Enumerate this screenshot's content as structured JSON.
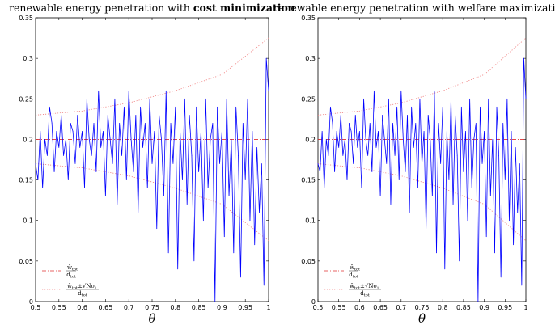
{
  "colors": {
    "signal": "#0000ff",
    "mean_line": "#e03030",
    "band_line": "#f08080",
    "axes": "#000000"
  },
  "chart_data": [
    {
      "type": "line",
      "title_main": "renewable energy penetration with ",
      "title_emph": "cost minimization",
      "xlabel": "θ",
      "ylabel": "",
      "xlim": [
        0.5,
        1.0
      ],
      "ylim": [
        0,
        0.35
      ],
      "xticks": [
        "0.5",
        "0.55",
        "0.6",
        "0.65",
        "0.7",
        "0.75",
        "0.8",
        "0.85",
        "0.9",
        "0.95",
        "1"
      ],
      "yticks": [
        "0",
        "0.05",
        "0.1",
        "0.15",
        "0.2",
        "0.25",
        "0.3",
        "0.35"
      ],
      "legend_position": "bottom-left",
      "legend": [
        {
          "main": "w̄",
          "sub": "tot",
          "den": "d",
          "den_sub": "tot",
          "extra": ""
        },
        {
          "main": "w̄",
          "sub": "tot",
          "den": "d",
          "den_sub": "tot",
          "extra": "±√Nσ"
        }
      ],
      "series": [
        {
          "style": "solid",
          "x": [
            0.5,
            0.505,
            0.51,
            0.515,
            0.52,
            0.525,
            0.53,
            0.535,
            0.54,
            0.545,
            0.55,
            0.555,
            0.56,
            0.565,
            0.57,
            0.575,
            0.58,
            0.585,
            0.59,
            0.595,
            0.6,
            0.605,
            0.61,
            0.615,
            0.62,
            0.625,
            0.63,
            0.635,
            0.64,
            0.645,
            0.65,
            0.655,
            0.66,
            0.665,
            0.67,
            0.675,
            0.68,
            0.685,
            0.69,
            0.695,
            0.7,
            0.705,
            0.71,
            0.715,
            0.72,
            0.725,
            0.73,
            0.735,
            0.74,
            0.745,
            0.75,
            0.755,
            0.76,
            0.765,
            0.77,
            0.775,
            0.78,
            0.785,
            0.79,
            0.795,
            0.8,
            0.805,
            0.81,
            0.815,
            0.82,
            0.825,
            0.83,
            0.835,
            0.84,
            0.845,
            0.85,
            0.855,
            0.86,
            0.865,
            0.87,
            0.875,
            0.88,
            0.885,
            0.89,
            0.895,
            0.9,
            0.905,
            0.91,
            0.915,
            0.92,
            0.925,
            0.93,
            0.935,
            0.94,
            0.945,
            0.95,
            0.955,
            0.96,
            0.965,
            0.97,
            0.975,
            0.98,
            0.985,
            0.99,
            0.995,
            1.0
          ],
          "y": [
            0.17,
            0.15,
            0.21,
            0.14,
            0.2,
            0.18,
            0.24,
            0.22,
            0.16,
            0.21,
            0.19,
            0.23,
            0.18,
            0.2,
            0.15,
            0.22,
            0.21,
            0.17,
            0.23,
            0.19,
            0.21,
            0.14,
            0.25,
            0.2,
            0.18,
            0.22,
            0.16,
            0.26,
            0.19,
            0.21,
            0.13,
            0.23,
            0.2,
            0.17,
            0.25,
            0.12,
            0.22,
            0.18,
            0.24,
            0.15,
            0.26,
            0.2,
            0.16,
            0.23,
            0.11,
            0.24,
            0.19,
            0.22,
            0.14,
            0.25,
            0.17,
            0.21,
            0.09,
            0.23,
            0.2,
            0.13,
            0.26,
            0.06,
            0.22,
            0.17,
            0.24,
            0.04,
            0.21,
            0.15,
            0.25,
            0.12,
            0.23,
            0.18,
            0.05,
            0.24,
            0.16,
            0.21,
            0.1,
            0.25,
            0.14,
            0.2,
            0.22,
            0.0,
            0.24,
            0.17,
            0.21,
            0.08,
            0.25,
            0.13,
            0.2,
            0.06,
            0.24,
            0.18,
            0.03,
            0.22,
            0.15,
            0.25,
            0.1,
            0.21,
            0.07,
            0.19,
            0.11,
            0.17,
            0.02,
            0.3,
            0.26
          ]
        }
      ],
      "mean": 0.2,
      "band_upper": [
        [
          0.5,
          0.23
        ],
        [
          0.6,
          0.235
        ],
        [
          0.7,
          0.245
        ],
        [
          0.8,
          0.26
        ],
        [
          0.9,
          0.28
        ],
        [
          1.0,
          0.325
        ]
      ],
      "band_lower": [
        [
          0.5,
          0.17
        ],
        [
          0.6,
          0.165
        ],
        [
          0.7,
          0.155
        ],
        [
          0.8,
          0.14
        ],
        [
          0.9,
          0.12
        ],
        [
          1.0,
          0.075
        ]
      ]
    },
    {
      "type": "line",
      "title_main": "renewable energy penetration with welfare maximization",
      "title_emph": "",
      "xlabel": "θ",
      "ylabel": "",
      "xlim": [
        0.5,
        1.0
      ],
      "ylim": [
        0,
        0.35
      ],
      "xticks": [
        "0.5",
        "0.55",
        "0.6",
        "0.65",
        "0.7",
        "0.75",
        "0.8",
        "0.85",
        "0.9",
        "0.95",
        "1"
      ],
      "yticks": [
        "0",
        "0.05",
        "0.1",
        "0.15",
        "0.2",
        "0.25",
        "0.3",
        "0.35"
      ],
      "legend_position": "bottom-left",
      "legend": [
        {
          "main": "w̄",
          "sub": "tot",
          "den": "d",
          "den_sub": "tot",
          "extra": ""
        },
        {
          "main": "w̄",
          "sub": "tot",
          "den": "d",
          "den_sub": "tot",
          "extra": "±√Nσ"
        }
      ],
      "series": [
        {
          "style": "solid",
          "x": [
            0.5,
            0.505,
            0.51,
            0.515,
            0.52,
            0.525,
            0.53,
            0.535,
            0.54,
            0.545,
            0.55,
            0.555,
            0.56,
            0.565,
            0.57,
            0.575,
            0.58,
            0.585,
            0.59,
            0.595,
            0.6,
            0.605,
            0.61,
            0.615,
            0.62,
            0.625,
            0.63,
            0.635,
            0.64,
            0.645,
            0.65,
            0.655,
            0.66,
            0.665,
            0.67,
            0.675,
            0.68,
            0.685,
            0.69,
            0.695,
            0.7,
            0.705,
            0.71,
            0.715,
            0.72,
            0.725,
            0.73,
            0.735,
            0.74,
            0.745,
            0.75,
            0.755,
            0.76,
            0.765,
            0.77,
            0.775,
            0.78,
            0.785,
            0.79,
            0.795,
            0.8,
            0.805,
            0.81,
            0.815,
            0.82,
            0.825,
            0.83,
            0.835,
            0.84,
            0.845,
            0.85,
            0.855,
            0.86,
            0.865,
            0.87,
            0.875,
            0.88,
            0.885,
            0.89,
            0.895,
            0.9,
            0.905,
            0.91,
            0.915,
            0.92,
            0.925,
            0.93,
            0.935,
            0.94,
            0.945,
            0.95,
            0.955,
            0.96,
            0.965,
            0.97,
            0.975,
            0.98,
            0.985,
            0.99,
            0.995,
            1.0
          ],
          "y": [
            0.17,
            0.16,
            0.21,
            0.14,
            0.2,
            0.18,
            0.24,
            0.22,
            0.16,
            0.21,
            0.19,
            0.23,
            0.18,
            0.2,
            0.15,
            0.22,
            0.21,
            0.17,
            0.23,
            0.19,
            0.21,
            0.14,
            0.25,
            0.2,
            0.18,
            0.22,
            0.16,
            0.26,
            0.19,
            0.21,
            0.13,
            0.23,
            0.2,
            0.17,
            0.25,
            0.12,
            0.22,
            0.18,
            0.24,
            0.15,
            0.26,
            0.2,
            0.16,
            0.23,
            0.11,
            0.24,
            0.19,
            0.22,
            0.14,
            0.25,
            0.17,
            0.21,
            0.09,
            0.23,
            0.2,
            0.13,
            0.26,
            0.06,
            0.22,
            0.17,
            0.24,
            0.04,
            0.21,
            0.15,
            0.25,
            0.12,
            0.23,
            0.18,
            0.05,
            0.24,
            0.16,
            0.21,
            0.1,
            0.25,
            0.14,
            0.2,
            0.22,
            0.0,
            0.24,
            0.17,
            0.21,
            0.08,
            0.25,
            0.13,
            0.2,
            0.06,
            0.24,
            0.18,
            0.03,
            0.22,
            0.15,
            0.25,
            0.1,
            0.21,
            0.07,
            0.19,
            0.11,
            0.17,
            0.02,
            0.3,
            0.25
          ]
        }
      ],
      "mean": 0.2,
      "band_upper": [
        [
          0.5,
          0.23
        ],
        [
          0.6,
          0.235
        ],
        [
          0.7,
          0.245
        ],
        [
          0.8,
          0.26
        ],
        [
          0.9,
          0.28
        ],
        [
          1.0,
          0.325
        ]
      ],
      "band_lower": [
        [
          0.5,
          0.17
        ],
        [
          0.6,
          0.165
        ],
        [
          0.7,
          0.155
        ],
        [
          0.8,
          0.14
        ],
        [
          0.9,
          0.12
        ],
        [
          1.0,
          0.075
        ]
      ]
    }
  ]
}
